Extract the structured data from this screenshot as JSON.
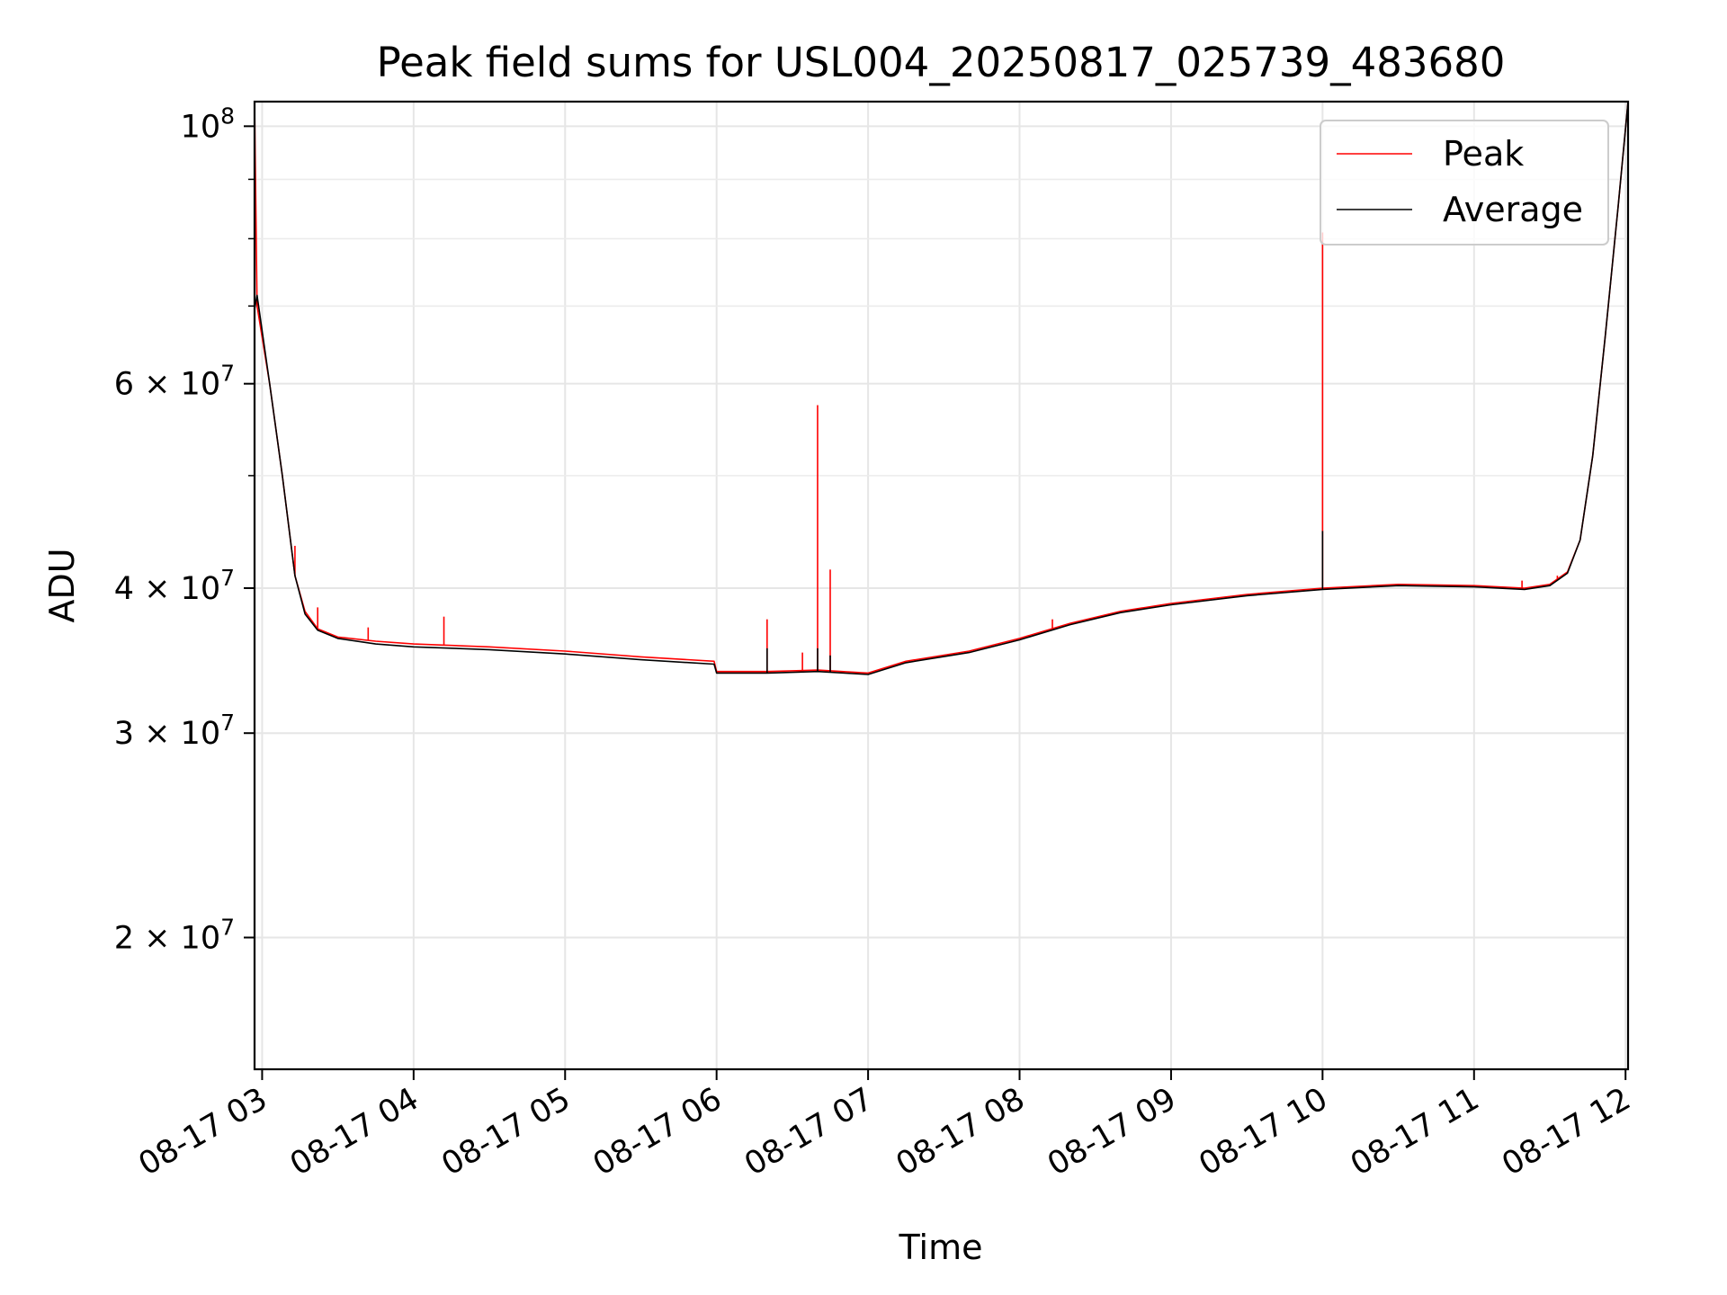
{
  "chart_data": {
    "type": "line",
    "title": "Peak field sums for USL004_20250817_025739_483680",
    "xlabel": "Time",
    "ylabel": "ADU",
    "yscale": "log",
    "xlim": [
      "08-17 02:57",
      "08-17 12:01"
    ],
    "ylim": [
      15400000,
      105000000
    ],
    "grid": true,
    "legend_position": "top-right",
    "x_ticks": [
      {
        "label": "08-17 03",
        "time": "08-17 03:00"
      },
      {
        "label": "08-17 04",
        "time": "08-17 04:00"
      },
      {
        "label": "08-17 05",
        "time": "08-17 05:00"
      },
      {
        "label": "08-17 06",
        "time": "08-17 06:00"
      },
      {
        "label": "08-17 07",
        "time": "08-17 07:00"
      },
      {
        "label": "08-17 08",
        "time": "08-17 08:00"
      },
      {
        "label": "08-17 09",
        "time": "08-17 09:00"
      },
      {
        "label": "08-17 10",
        "time": "08-17 10:00"
      },
      {
        "label": "08-17 11",
        "time": "08-17 11:00"
      },
      {
        "label": "08-17 12",
        "time": "08-17 12:00"
      }
    ],
    "y_ticks": [
      {
        "value": 20000000,
        "mantissa": "2",
        "exponent": "7"
      },
      {
        "value": 30000000,
        "mantissa": "3",
        "exponent": "7"
      },
      {
        "value": 40000000,
        "mantissa": "4",
        "exponent": "7"
      },
      {
        "value": 60000000,
        "mantissa": "6",
        "exponent": "7"
      },
      {
        "value": 100000000,
        "mantissa": "10",
        "exponent": "8"
      }
    ],
    "y_minor_ticks": [
      50000000,
      70000000,
      80000000,
      90000000
    ],
    "series": [
      {
        "name": "Peak",
        "color": "#ff0000",
        "points": [
          [
            "08-17 02:57",
            105000000
          ],
          [
            "08-17 02:58",
            70000000
          ],
          [
            "08-17 03:03",
            60000000
          ],
          [
            "08-17 03:08",
            50000000
          ],
          [
            "08-17 03:13",
            41000000
          ],
          [
            "08-17 03:17",
            38200000
          ],
          [
            "08-17 03:22",
            36900000
          ],
          [
            "08-17 03:30",
            36300000
          ],
          [
            "08-17 03:45",
            36000000
          ],
          [
            "08-17 04:00",
            35800000
          ],
          [
            "08-17 04:30",
            35600000
          ],
          [
            "08-17 05:00",
            35300000
          ],
          [
            "08-17 05:30",
            34900000
          ],
          [
            "08-17 05:59",
            34600000
          ],
          [
            "08-17 06:00",
            33900000
          ],
          [
            "08-17 06:20",
            33900000
          ],
          [
            "08-17 06:40",
            34000000
          ],
          [
            "08-17 07:00",
            33800000
          ],
          [
            "08-17 07:15",
            34600000
          ],
          [
            "08-17 07:40",
            35300000
          ],
          [
            "08-17 08:00",
            36200000
          ],
          [
            "08-17 08:20",
            37300000
          ],
          [
            "08-17 08:40",
            38200000
          ],
          [
            "08-17 09:00",
            38800000
          ],
          [
            "08-17 09:30",
            39500000
          ],
          [
            "08-17 10:00",
            40000000
          ],
          [
            "08-17 10:30",
            40300000
          ],
          [
            "08-17 11:00",
            40200000
          ],
          [
            "08-17 11:20",
            40000000
          ],
          [
            "08-17 11:30",
            40300000
          ],
          [
            "08-17 11:37",
            41300000
          ],
          [
            "08-17 11:42",
            44000000
          ],
          [
            "08-17 11:47",
            52000000
          ],
          [
            "08-17 11:52",
            66000000
          ],
          [
            "08-17 11:57",
            85000000
          ],
          [
            "08-17 12:01",
            105000000
          ]
        ],
        "spikes": [
          [
            "08-17 02:57",
            105000000
          ],
          [
            "08-17 03:13",
            43500000
          ],
          [
            "08-17 03:22",
            38500000
          ],
          [
            "08-17 03:42",
            37000000
          ],
          [
            "08-17 04:12",
            37800000
          ],
          [
            "08-17 06:20",
            37600000
          ],
          [
            "08-17 06:34",
            35200000
          ],
          [
            "08-17 06:40",
            57500000
          ],
          [
            "08-17 06:45",
            41500000
          ],
          [
            "08-17 08:13",
            37600000
          ],
          [
            "08-17 10:00",
            81000000
          ],
          [
            "08-17 11:19",
            40600000
          ],
          [
            "08-17 11:33",
            41000000
          ]
        ]
      },
      {
        "name": "Average",
        "color": "#000000",
        "points": [
          [
            "08-17 02:57",
            69500000
          ],
          [
            "08-17 02:58",
            71500000
          ],
          [
            "08-17 03:03",
            60000000
          ],
          [
            "08-17 03:08",
            50000000
          ],
          [
            "08-17 03:13",
            41000000
          ],
          [
            "08-17 03:17",
            38000000
          ],
          [
            "08-17 03:22",
            36800000
          ],
          [
            "08-17 03:30",
            36200000
          ],
          [
            "08-17 03:45",
            35800000
          ],
          [
            "08-17 04:00",
            35600000
          ],
          [
            "08-17 04:30",
            35400000
          ],
          [
            "08-17 05:00",
            35100000
          ],
          [
            "08-17 05:30",
            34700000
          ],
          [
            "08-17 05:59",
            34400000
          ],
          [
            "08-17 06:00",
            33800000
          ],
          [
            "08-17 06:20",
            33800000
          ],
          [
            "08-17 06:40",
            33900000
          ],
          [
            "08-17 07:00",
            33700000
          ],
          [
            "08-17 07:15",
            34500000
          ],
          [
            "08-17 07:40",
            35200000
          ],
          [
            "08-17 08:00",
            36100000
          ],
          [
            "08-17 08:20",
            37200000
          ],
          [
            "08-17 08:40",
            38100000
          ],
          [
            "08-17 09:00",
            38700000
          ],
          [
            "08-17 09:30",
            39400000
          ],
          [
            "08-17 10:00",
            39900000
          ],
          [
            "08-17 10:30",
            40200000
          ],
          [
            "08-17 11:00",
            40100000
          ],
          [
            "08-17 11:20",
            39900000
          ],
          [
            "08-17 11:30",
            40200000
          ],
          [
            "08-17 11:37",
            41200000
          ],
          [
            "08-17 11:42",
            44000000
          ],
          [
            "08-17 11:47",
            52000000
          ],
          [
            "08-17 11:52",
            66000000
          ],
          [
            "08-17 11:57",
            85000000
          ],
          [
            "08-17 12:01",
            105000000
          ]
        ],
        "spikes": [
          [
            "08-17 06:20",
            35500000
          ],
          [
            "08-17 06:40",
            35500000
          ],
          [
            "08-17 06:45",
            35000000
          ],
          [
            "08-17 10:00",
            44800000
          ]
        ]
      }
    ]
  }
}
